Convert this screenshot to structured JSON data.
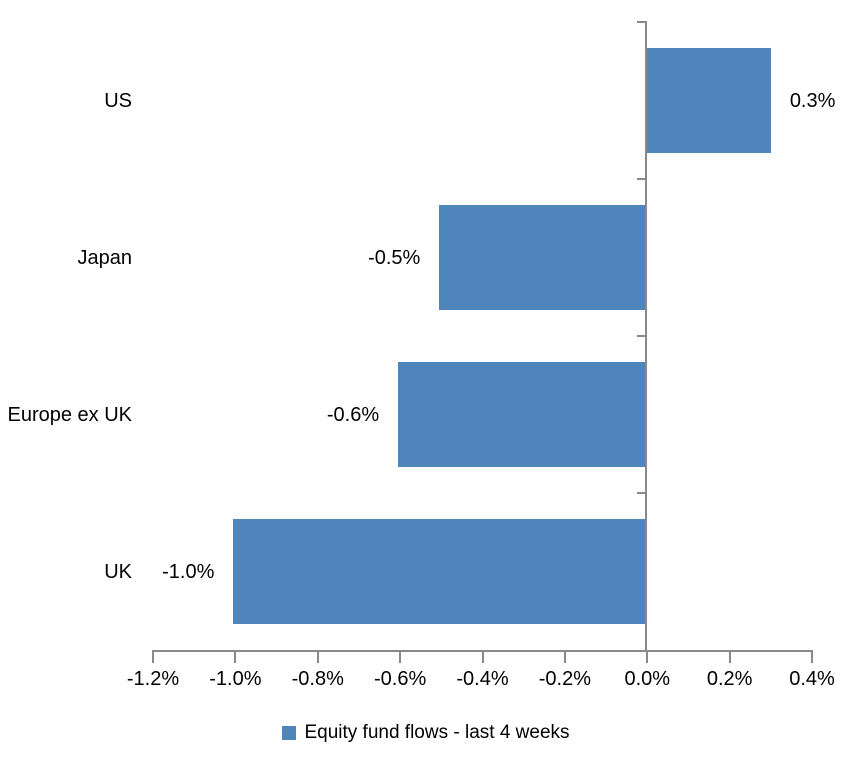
{
  "chart_data": {
    "type": "bar",
    "orientation": "horizontal",
    "title": "",
    "categories": [
      "US",
      "Japan",
      "Europe ex UK",
      "UK"
    ],
    "values": [
      0.3,
      -0.5,
      -0.6,
      -1.0
    ],
    "value_labels": [
      "0.3%",
      "-0.5%",
      "-0.6%",
      "-1.0%"
    ],
    "series_name": "Equity fund flows - last 4 weeks",
    "x_tick_values": [
      -1.2,
      -1.0,
      -0.8,
      -0.6,
      -0.4,
      -0.2,
      0.0,
      0.2,
      0.4
    ],
    "x_tick_labels": [
      "-1.2%",
      "-1.0%",
      "-0.8%",
      "-0.6%",
      "-0.4%",
      "-0.2%",
      "0.0%",
      "0.2%",
      "0.4%"
    ],
    "xlim": [
      -1.2,
      0.4
    ],
    "grid": false,
    "legend_position": "bottom",
    "bar_color": "#4E86BC",
    "axis_color": "#898989",
    "text_color": "#000000",
    "background_color": "#FFFFFF"
  }
}
